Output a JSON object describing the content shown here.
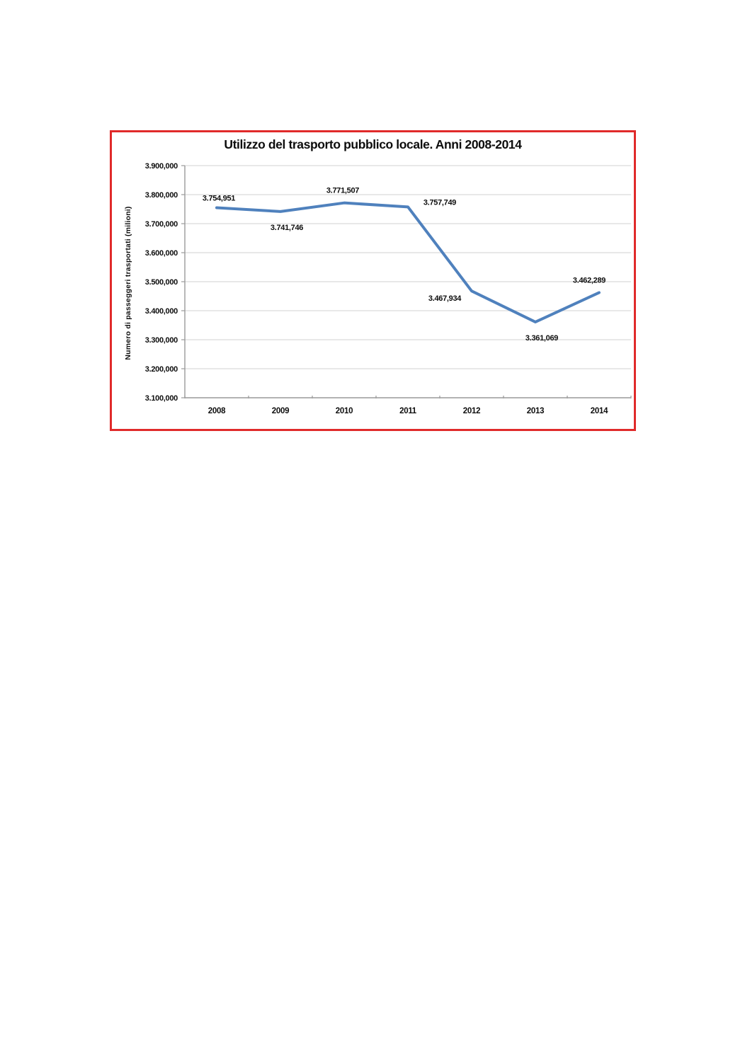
{
  "frame": {
    "border_color": "#e02a2a",
    "background": "#ffffff"
  },
  "chart_data": {
    "type": "line",
    "title": "Utilizzo del trasporto pubblico locale. Anni 2008-2014",
    "xlabel": "",
    "ylabel": "Numero di passeggeri trasportati (milioni)",
    "categories": [
      "2008",
      "2009",
      "2010",
      "2011",
      "2012",
      "2013",
      "2014"
    ],
    "series": [
      {
        "name": "Numero di passeggeri trasportati",
        "values": [
          3754951,
          3741746,
          3771507,
          3757749,
          3467934,
          3361069,
          3462289
        ],
        "value_labels": [
          "3.754,951",
          "3.741,746",
          "3.771,507",
          "3.757,749",
          "3.467,934",
          "3.361,069",
          "3.462,289"
        ]
      }
    ],
    "ylim": [
      3100000,
      3900000
    ],
    "ytick_step": 100000,
    "ytick_labels": [
      "3.100,000",
      "3.200,000",
      "3.300,000",
      "3.400,000",
      "3.500,000",
      "3.600,000",
      "3.700,000",
      "3.800,000",
      "3.900,000"
    ],
    "grid": true,
    "legend_position": "none",
    "colors": {
      "line": "#4f81bd",
      "grid": "#d9d9d9",
      "axis": "#9a9a9a",
      "text": "#0d0d0d"
    }
  }
}
